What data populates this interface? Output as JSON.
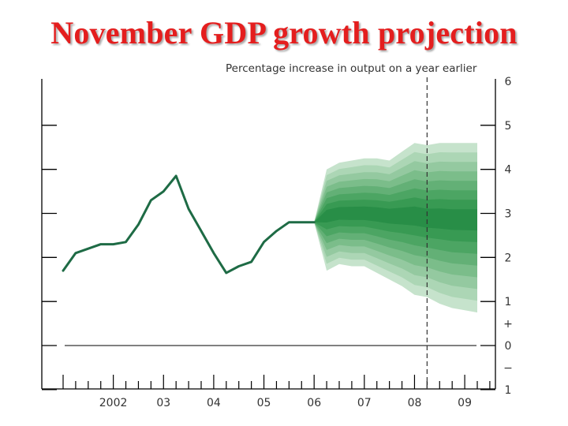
{
  "title": "November GDP growth projection",
  "chart_data": {
    "type": "area",
    "ylabel": "Percentage increase in output on a year earlier",
    "y_right_ticks": [
      "6",
      "5",
      "4",
      "3",
      "2",
      "1",
      "+",
      "0",
      "−",
      "1"
    ],
    "x_tick_labels": [
      "2002",
      "03",
      "04",
      "05",
      "06",
      "07",
      "08",
      "09"
    ],
    "ylim": [
      -1,
      6
    ],
    "xlim": [
      2001.0,
      2010.0
    ],
    "history": {
      "name": "GDP growth",
      "x": [
        2001.0,
        2001.25,
        2001.5,
        2001.75,
        2002.0,
        2002.25,
        2002.5,
        2002.75,
        2003.0,
        2003.25,
        2003.5,
        2003.75,
        2004.0,
        2004.25,
        2004.5,
        2004.75,
        2005.0,
        2005.25,
        2005.5,
        2005.75,
        2006.0
      ],
      "values": [
        1.7,
        2.1,
        2.2,
        2.3,
        2.3,
        2.35,
        2.75,
        3.3,
        3.5,
        3.85,
        3.1,
        2.6,
        2.1,
        1.65,
        1.8,
        1.9,
        2.35,
        2.6,
        2.8,
        2.8,
        2.8
      ]
    },
    "projection": {
      "x": [
        2006.0,
        2006.25,
        2006.5,
        2006.75,
        2007.0,
        2007.25,
        2007.5,
        2007.75,
        2008.0,
        2008.25,
        2008.5,
        2008.75,
        2009.0,
        2009.25
      ],
      "central": [
        2.8,
        2.95,
        3.0,
        3.0,
        3.0,
        2.98,
        2.95,
        2.95,
        2.95,
        2.9,
        2.9,
        2.88,
        2.88,
        2.88
      ],
      "upper": [
        2.8,
        4.0,
        4.15,
        4.2,
        4.25,
        4.25,
        4.2,
        4.4,
        4.6,
        4.55,
        4.6,
        4.6,
        4.6,
        4.6
      ],
      "lower": [
        2.8,
        1.7,
        1.85,
        1.8,
        1.8,
        1.65,
        1.5,
        1.35,
        1.15,
        1.1,
        0.95,
        0.85,
        0.8,
        0.75
      ],
      "band_colors": [
        "#c6e3cc",
        "#acd6b5",
        "#94c9a0",
        "#7bbd8a",
        "#63b076",
        "#4ca563",
        "#389a53",
        "#288e47"
      ]
    },
    "vertical_marker_x": 2008.25,
    "grid": false,
    "colors": {
      "line": "#1e6b45",
      "axis": "#000000"
    }
  }
}
